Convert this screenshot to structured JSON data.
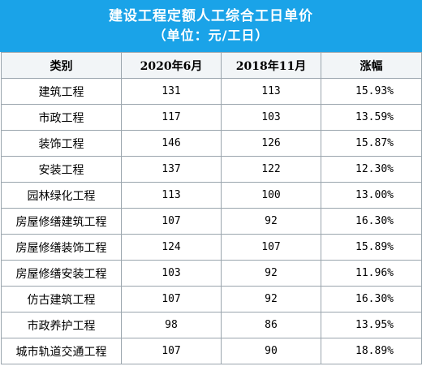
{
  "title": {
    "line1": "建设工程定额人工综合工日单价",
    "line2": "（单位：元/工日）"
  },
  "table": {
    "headers": [
      "类别",
      "2020年6月",
      "2018年11月",
      "涨幅"
    ],
    "rows": [
      {
        "category": "建筑工程",
        "jun2020": "131",
        "nov2018": "113",
        "increase": "15.93%"
      },
      {
        "category": "市政工程",
        "jun2020": "117",
        "nov2018": "103",
        "increase": "13.59%"
      },
      {
        "category": "装饰工程",
        "jun2020": "146",
        "nov2018": "126",
        "increase": "15.87%"
      },
      {
        "category": "安装工程",
        "jun2020": "137",
        "nov2018": "122",
        "increase": "12.30%"
      },
      {
        "category": "园林绿化工程",
        "jun2020": "113",
        "nov2018": "100",
        "increase": "13.00%"
      },
      {
        "category": "房屋修缮建筑工程",
        "jun2020": "107",
        "nov2018": "92",
        "increase": "16.30%"
      },
      {
        "category": "房屋修缮装饰工程",
        "jun2020": "124",
        "nov2018": "107",
        "increase": "15.89%"
      },
      {
        "category": "房屋修缮安装工程",
        "jun2020": "103",
        "nov2018": "92",
        "increase": "11.96%"
      },
      {
        "category": "仿古建筑工程",
        "jun2020": "107",
        "nov2018": "92",
        "increase": "16.30%"
      },
      {
        "category": "市政养护工程",
        "jun2020": "98",
        "nov2018": "86",
        "increase": "13.95%"
      },
      {
        "category": "城市轨道交通工程",
        "jun2020": "107",
        "nov2018": "90",
        "increase": "18.89%"
      }
    ]
  },
  "colors": {
    "title_band": "#1aa3e8",
    "title_text": "#ffffff",
    "grid_line": "#9aa5ad"
  }
}
